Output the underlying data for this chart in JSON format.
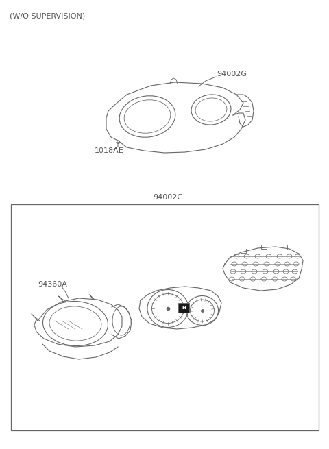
{
  "title": "(W/O SUPERVISION)",
  "line_color": "#666666",
  "text_color": "#555555",
  "label_94002G_top": "94002G",
  "label_1018AE": "1018AE",
  "label_94002G_box": "94002G",
  "label_94360A": "94360A",
  "fig_width": 4.8,
  "fig_height": 6.55,
  "dpi": 100
}
